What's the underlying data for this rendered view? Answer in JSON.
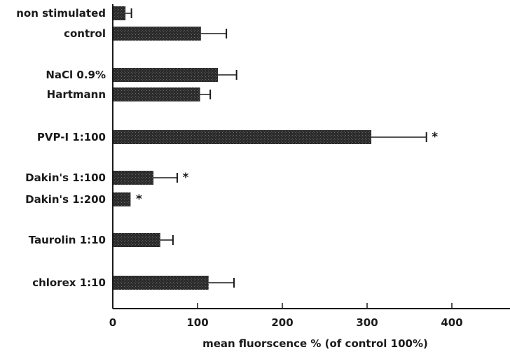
{
  "chart_data": {
    "type": "bar",
    "orientation": "horizontal",
    "categories": [
      "non stimulated",
      "control",
      "NaCl 0.9%",
      "Hartmann",
      "PVP-I 1:100",
      "Dakin's 1:100",
      "Dakin's 1:200",
      "Taurolin 1:10",
      "chlorex 1:10"
    ],
    "values": [
      15,
      104,
      124,
      103,
      305,
      48,
      21,
      56,
      113
    ],
    "errors": [
      7,
      30,
      22,
      12,
      65,
      28,
      0,
      15,
      30
    ],
    "significance": [
      "",
      "",
      "",
      "",
      "*",
      "*",
      "*",
      "",
      ""
    ],
    "xlabel": "mean fluorscence % (of control 100%)",
    "ylabel": "",
    "title": "",
    "xlim": [
      0,
      480
    ],
    "xticks": [
      "0",
      "100",
      "200",
      "300",
      "400"
    ],
    "grid": false,
    "bar_color": "#2b2b2b"
  }
}
